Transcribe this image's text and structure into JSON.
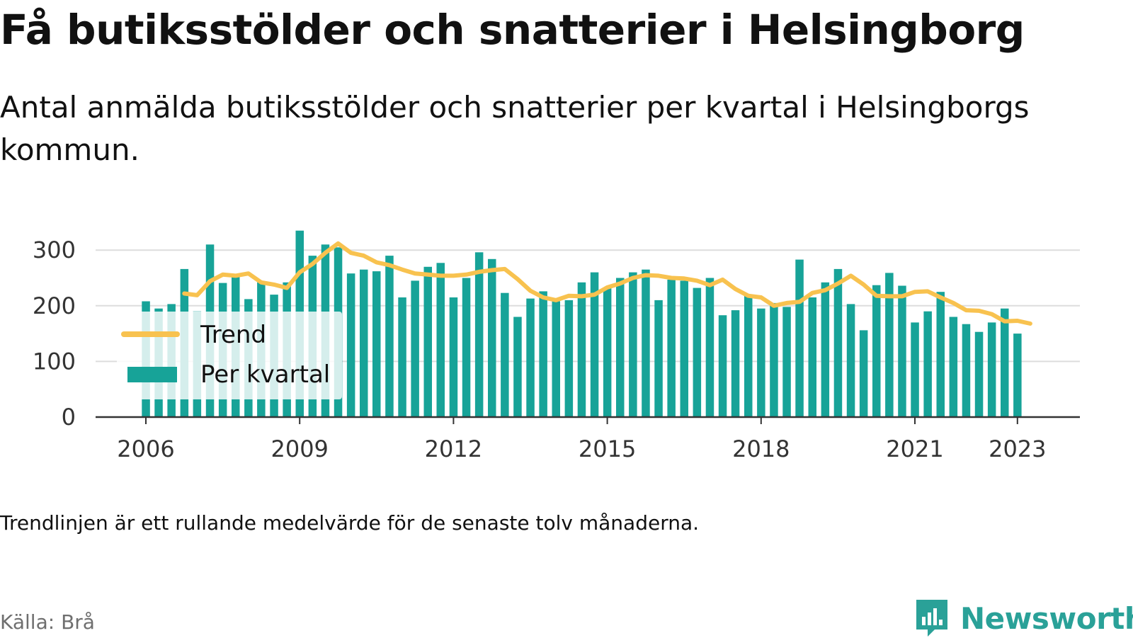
{
  "title": "Få butiksstölder och snatterier i Helsingborg",
  "subtitle": "Antal anmälda butiksstölder och snatterier per kvartal i Helsingborgs kommun.",
  "note": "Trendlinjen är ett rullande medelvärde för de senaste tolv månaderna.",
  "source": "Källa: Brå",
  "logo": {
    "text": "Newsworthy",
    "icon": "newsworthy-logo-icon"
  },
  "colors": {
    "bar": "#17a398",
    "trend": "#f8c24f",
    "grid": "#dddddd",
    "axis": "#333333",
    "brand": "#2aa198"
  },
  "chart_data": {
    "type": "bar",
    "x_start": "2006 Q1",
    "x_ticks": [
      "2006",
      "2009",
      "2012",
      "2015",
      "2018",
      "2021",
      "2023"
    ],
    "y_ticks": [
      "0",
      "100",
      "200",
      "300"
    ],
    "ylim": [
      0,
      340
    ],
    "grid": true,
    "legend": {
      "position": "left",
      "items": [
        "Trend",
        "Per kvartal"
      ]
    },
    "series": [
      {
        "name": "Per kvartal",
        "type": "bar",
        "values": [
          208,
          195,
          203,
          266,
          190,
          310,
          241,
          252,
          212,
          242,
          220,
          242,
          335,
          290,
          310,
          305,
          258,
          265,
          262,
          290,
          215,
          245,
          270,
          277,
          215,
          250,
          296,
          284,
          223,
          180,
          213,
          226,
          208,
          210,
          242,
          260,
          232,
          250,
          260,
          265,
          210,
          247,
          245,
          232,
          250,
          183,
          192,
          220,
          195,
          205,
          198,
          283,
          215,
          242,
          266,
          203,
          156,
          237,
          259,
          236,
          170,
          190,
          225,
          180,
          167,
          153,
          170,
          195,
          150
        ]
      },
      {
        "name": "Trend",
        "type": "line",
        "start_index": 3,
        "values": [
          222,
          219,
          244,
          256,
          254,
          258,
          242,
          238,
          232,
          260,
          275,
          295,
          312,
          295,
          290,
          278,
          273,
          265,
          258,
          256,
          254,
          254,
          256,
          261,
          264,
          266,
          248,
          227,
          215,
          210,
          218,
          217,
          220,
          233,
          240,
          250,
          255,
          254,
          250,
          249,
          245,
          237,
          247,
          230,
          218,
          215,
          200,
          205,
          207,
          223,
          228,
          240,
          254,
          238,
          218,
          217,
          217,
          225,
          226,
          215,
          205,
          192,
          191,
          185,
          172,
          173,
          168
        ]
      }
    ]
  }
}
